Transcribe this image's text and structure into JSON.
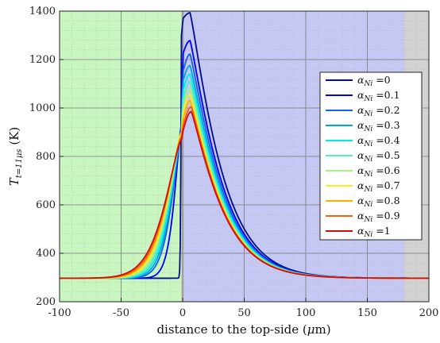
{
  "chart_data": {
    "type": "line",
    "title": "",
    "xlabel": "distance to the top-side (μm)",
    "ylabel": "T_{t=11μs} (K)",
    "xlim": [
      -100,
      200
    ],
    "ylim": [
      200,
      1400
    ],
    "xticks": [
      -100,
      -50,
      0,
      50,
      100,
      150,
      200
    ],
    "yticks": [
      200,
      400,
      600,
      800,
      1000,
      1200,
      1400
    ],
    "xtick_labels": [
      "-100",
      "-50",
      "0",
      "50",
      "100",
      "150",
      "200"
    ],
    "ytick_labels": [
      "200",
      "400",
      "600",
      "800",
      "1000",
      "1200",
      "1400"
    ],
    "grid": true,
    "legend_position": "right",
    "regions": [
      {
        "x_range": [
          -100,
          -1
        ],
        "color": "#c8f5c0"
      },
      {
        "x_range": [
          -1,
          1
        ],
        "color": "#b8b8b8"
      },
      {
        "x_range": [
          1,
          180
        ],
        "color": "#c4c8f2"
      },
      {
        "x_range": [
          180,
          200
        ],
        "color": "#d2d2d2"
      }
    ],
    "ambient_temperature": 297,
    "series": [
      {
        "name": "α_{Ni} =0",
        "alpha": 0,
        "color": "#000e8c",
        "peak_x": 6,
        "peak_y": 1393,
        "surface_y": 1370,
        "left_y": 1300,
        "rise_width": 0.6
      },
      {
        "name": "α_{Ni} =0.1",
        "alpha": 0.1,
        "color": "#0000ff",
        "peak_x": 6,
        "peak_y": 1278,
        "surface_y": 1225,
        "left_y": 930,
        "rise_width": 8
      },
      {
        "name": "α_{Ni} =0.2",
        "alpha": 0.2,
        "color": "#1560e8",
        "peak_x": 6,
        "peak_y": 1222,
        "surface_y": 1150,
        "left_y": 900,
        "rise_width": 11
      },
      {
        "name": "α_{Ni} =0.3",
        "alpha": 0.3,
        "color": "#00a8d8",
        "peak_x": 6,
        "peak_y": 1175,
        "surface_y": 1110,
        "left_y": 900,
        "rise_width": 12
      },
      {
        "name": "α_{Ni} =0.4",
        "alpha": 0.4,
        "color": "#00e8f0",
        "peak_x": 6,
        "peak_y": 1140,
        "surface_y": 1070,
        "left_y": 900,
        "rise_width": 13
      },
      {
        "name": "α_{Ni} =0.5",
        "alpha": 0.5,
        "color": "#50f0c0",
        "peak_x": 6,
        "peak_y": 1110,
        "surface_y": 1030,
        "left_y": 900,
        "rise_width": 14
      },
      {
        "name": "α_{Ni} =0.6",
        "alpha": 0.6,
        "color": "#a8f080",
        "peak_x": 6,
        "peak_y": 1080,
        "surface_y": 1000,
        "left_y": 900,
        "rise_width": 15
      },
      {
        "name": "α_{Ni} =0.7",
        "alpha": 0.7,
        "color": "#f5f020",
        "peak_x": 6,
        "peak_y": 1055,
        "surface_y": 975,
        "left_y": 900,
        "rise_width": 16
      },
      {
        "name": "α_{Ni} =0.8",
        "alpha": 0.8,
        "color": "#ffb000",
        "peak_x": 6,
        "peak_y": 1030,
        "surface_y": 950,
        "left_y": 890,
        "rise_width": 17
      },
      {
        "name": "α_{Ni} =0.9",
        "alpha": 0.9,
        "color": "#ff5a10",
        "peak_x": 7,
        "peak_y": 1005,
        "surface_y": 925,
        "left_y": 880,
        "rise_width": 18
      },
      {
        "name": "α_{Ni} =1",
        "alpha": 1,
        "color": "#cc1010",
        "peak_x": 7,
        "peak_y": 985,
        "surface_y": 905,
        "left_y": 870,
        "rise_width": 19
      }
    ]
  }
}
